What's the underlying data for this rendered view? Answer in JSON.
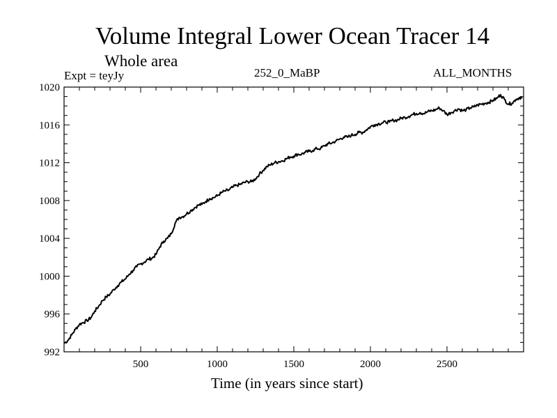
{
  "chart_data": {
    "type": "line",
    "title": "Volume Integral Lower Ocean Tracer 14",
    "subtitle": "Whole area",
    "annotations": {
      "left": "Expt = teyJy",
      "center": "252_0_MaBP",
      "right": "ALL_MONTHS"
    },
    "xlabel": "Time (in years since start)",
    "ylabel": "",
    "xlim": [
      0,
      3000
    ],
    "ylim": [
      992,
      1020
    ],
    "x_ticks": [
      500,
      1000,
      1500,
      2000,
      2500
    ],
    "y_ticks": [
      992,
      996,
      1000,
      1004,
      1008,
      1012,
      1016,
      1020
    ],
    "series": [
      {
        "name": "Volume Integral Lower Ocean Tracer 14",
        "color": "#000000",
        "x": [
          0,
          25,
          50,
          75,
          100,
          125,
          150,
          175,
          200,
          225,
          250,
          275,
          300,
          325,
          350,
          375,
          400,
          425,
          450,
          475,
          500,
          525,
          550,
          575,
          600,
          625,
          650,
          675,
          700,
          725,
          750,
          775,
          800,
          825,
          850,
          875,
          900,
          925,
          950,
          975,
          1000,
          1025,
          1050,
          1075,
          1100,
          1125,
          1150,
          1175,
          1200,
          1225,
          1250,
          1275,
          1300,
          1325,
          1350,
          1375,
          1400,
          1425,
          1450,
          1475,
          1500,
          1525,
          1550,
          1575,
          1600,
          1625,
          1650,
          1675,
          1700,
          1725,
          1750,
          1775,
          1800,
          1825,
          1850,
          1875,
          1900,
          1925,
          1950,
          1975,
          2000,
          2025,
          2050,
          2075,
          2100,
          2125,
          2150,
          2175,
          2200,
          2225,
          2250,
          2275,
          2300,
          2325,
          2350,
          2375,
          2400,
          2425,
          2450,
          2475,
          2500,
          2525,
          2550,
          2575,
          2600,
          2625,
          2650,
          2675,
          2700,
          2725,
          2750,
          2775,
          2800,
          2825,
          2850,
          2875,
          2900,
          2925,
          2950,
          2975,
          2990
        ],
        "values": [
          992.9,
          993.2,
          993.8,
          994.4,
          994.9,
          995.1,
          995.3,
          995.6,
          996.3,
          996.8,
          997.4,
          997.8,
          998.1,
          998.6,
          999.0,
          999.4,
          999.7,
          1000.2,
          1000.6,
          1001.0,
          1001.3,
          1001.5,
          1001.8,
          1001.9,
          1002.3,
          1003.1,
          1003.7,
          1004.0,
          1004.5,
          1005.6,
          1006.2,
          1006.3,
          1006.6,
          1006.9,
          1007.2,
          1007.5,
          1007.6,
          1007.9,
          1008.2,
          1008.3,
          1008.5,
          1008.8,
          1009.0,
          1009.1,
          1009.4,
          1009.6,
          1009.7,
          1009.9,
          1010.0,
          1010.0,
          1010.3,
          1010.8,
          1011.2,
          1011.6,
          1011.8,
          1012.0,
          1012.1,
          1012.2,
          1012.4,
          1012.6,
          1012.7,
          1012.9,
          1012.9,
          1013.1,
          1013.2,
          1013.3,
          1013.5,
          1013.5,
          1013.8,
          1014.0,
          1014.1,
          1014.3,
          1014.5,
          1014.7,
          1014.7,
          1014.9,
          1015.0,
          1015.2,
          1015.2,
          1015.5,
          1015.8,
          1016.0,
          1016.1,
          1016.2,
          1016.3,
          1016.3,
          1016.5,
          1016.5,
          1016.7,
          1016.8,
          1016.9,
          1017.1,
          1017.2,
          1017.3,
          1017.2,
          1017.4,
          1017.5,
          1017.6,
          1017.8,
          1017.5,
          1017.1,
          1017.3,
          1017.5,
          1017.7,
          1017.5,
          1017.6,
          1017.8,
          1017.9,
          1018.1,
          1018.2,
          1018.3,
          1018.4,
          1018.6,
          1018.8,
          1019.2,
          1018.7,
          1018.2,
          1018.3,
          1018.7,
          1018.9,
          1018.8
        ]
      }
    ]
  }
}
